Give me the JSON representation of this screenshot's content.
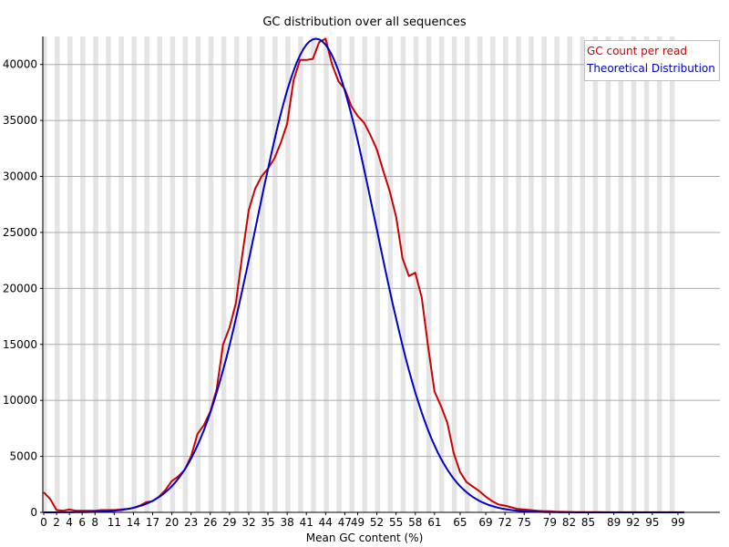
{
  "chart_data": {
    "type": "line",
    "title": "GC distribution over all sequences",
    "xlabel": "Mean GC content (%)",
    "ylabel": "",
    "xlim": [
      0,
      100
    ],
    "ylim": [
      0,
      42500
    ],
    "grid": "horizontal",
    "banded_background": true,
    "legend_placement": "top-right",
    "y_ticks": [
      0,
      5000,
      10000,
      15000,
      20000,
      25000,
      30000,
      35000,
      40000
    ],
    "x_tick_labels": [
      "0",
      "2",
      "4",
      "6",
      "8",
      "11",
      "14",
      "17",
      "20",
      "23",
      "26",
      "29",
      "32",
      "35",
      "38",
      "41",
      "44",
      "47",
      "49",
      "52",
      "55",
      "58",
      "61",
      "65",
      "69",
      "72",
      "75",
      "79",
      "82",
      "85",
      "89",
      "92",
      "95",
      "99"
    ],
    "series": [
      {
        "name": "GC count per read",
        "color": "#cc0000",
        "values": [
          1800,
          1200,
          200,
          150,
          250,
          150,
          150,
          150,
          150,
          200,
          200,
          200,
          250,
          300,
          400,
          600,
          900,
          1000,
          1400,
          2000,
          2800,
          3200,
          3800,
          5000,
          7000,
          7800,
          9000,
          11000,
          15000,
          16500,
          18700,
          23000,
          27000,
          28900,
          30000,
          30700,
          31600,
          33000,
          34700,
          38600,
          40400,
          40400,
          40500,
          42000,
          42300,
          40000,
          38500,
          37800,
          36300,
          35400,
          34800,
          33700,
          32400,
          30500,
          28700,
          26400,
          22700,
          21100,
          21400,
          19200,
          14800,
          10800,
          9500,
          8000,
          5300,
          3600,
          2700,
          2300,
          1900,
          1400,
          1000,
          700,
          600,
          450,
          300,
          250,
          200,
          150,
          100,
          100,
          50,
          50,
          30,
          25,
          20,
          20,
          15,
          15,
          10,
          10,
          10,
          10,
          10,
          10,
          10,
          10,
          10,
          10,
          10,
          10,
          10
        ],
        "smooth": false
      },
      {
        "name": "Theoretical Distribution",
        "color": "#0000cc",
        "mean": 42.5,
        "sd": 9.35,
        "peak": 42300,
        "smooth": true
      }
    ]
  }
}
